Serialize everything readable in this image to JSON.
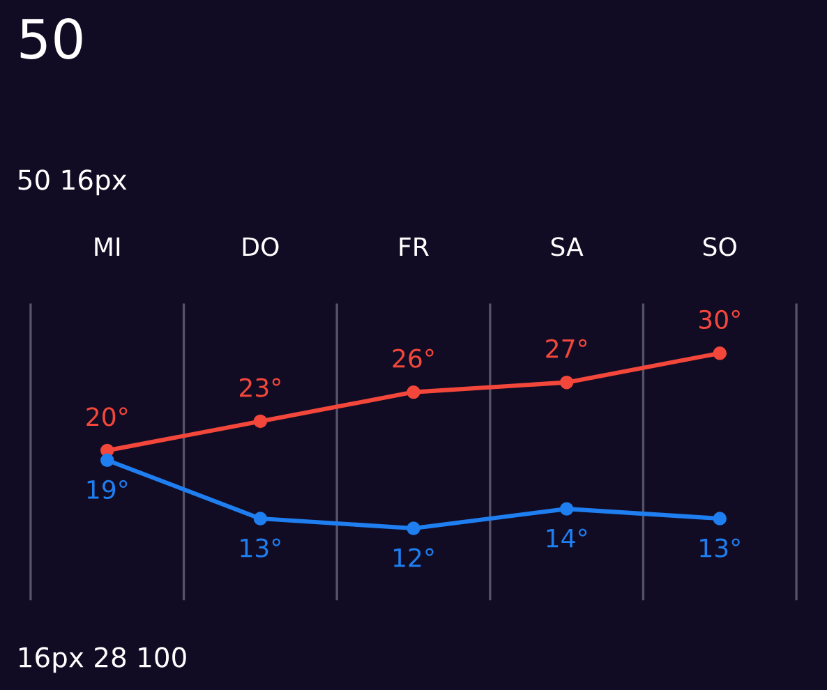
{
  "chart_data": {
    "type": "line",
    "title": "50",
    "subtitle": "50 16px",
    "annotations": [
      "16px 28 100"
    ],
    "categories": [
      "MI",
      "DO",
      "FR",
      "SA",
      "SO"
    ],
    "series": [
      {
        "color": "#f4473b",
        "values": [
          20,
          23,
          26,
          27,
          30
        ],
        "value_labels": [
          "20°",
          "23°",
          "26°",
          "27°",
          "30°"
        ]
      },
      {
        "color": "#1f7ff0",
        "values": [
          19,
          13,
          12,
          14,
          13
        ],
        "value_labels": [
          "19°",
          "13°",
          "12°",
          "14°",
          "13°"
        ]
      }
    ],
    "ylim": [
      4.6,
      35.1
    ],
    "grid": "x",
    "tick_labels": "x",
    "marker": "circle",
    "line_style": "solid",
    "legend": false
  }
}
